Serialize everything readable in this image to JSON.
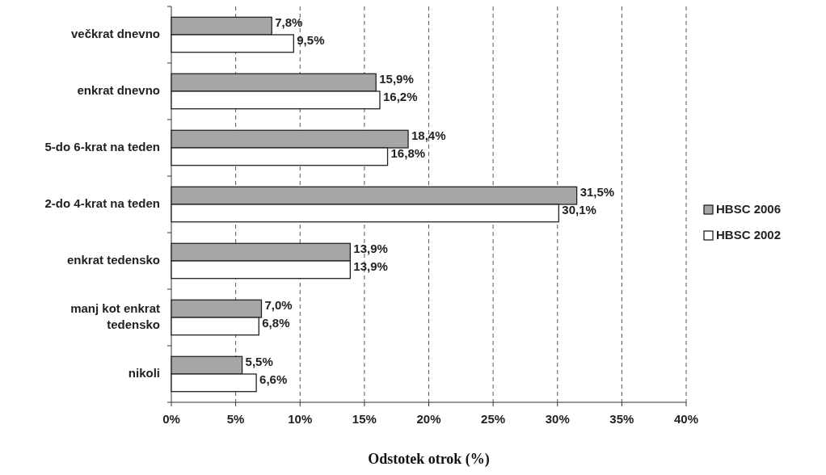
{
  "chart_data": {
    "type": "bar",
    "orientation": "horizontal",
    "xlabel": "Odstotek otrok (%)",
    "categories": [
      "večkrat dnevno",
      "enkrat dnevno",
      "5-do 6-krat na teden",
      "2-do 4-krat na teden",
      "enkrat tedensko",
      "manj kot enkrat tedensko",
      "nikoli"
    ],
    "series": [
      {
        "name": "HBSC 2006",
        "color": "#a6a6a6",
        "values": [
          7.8,
          15.9,
          18.4,
          31.5,
          13.9,
          7.0,
          5.5
        ],
        "value_labels": [
          "7,8%",
          "15,9%",
          "18,4%",
          "31,5%",
          "13,9%",
          "7,0%",
          "5,5%"
        ]
      },
      {
        "name": "HBSC 2002",
        "color": "#ffffff",
        "values": [
          9.5,
          16.2,
          16.8,
          30.1,
          13.9,
          6.8,
          6.6
        ],
        "value_labels": [
          "9,5%",
          "16,2%",
          "16,8%",
          "30,1%",
          "13,9%",
          "6,8%",
          "6,6%"
        ]
      }
    ],
    "xlim": [
      0,
      40
    ],
    "xticks": [
      {
        "value": 0,
        "label": "0%"
      },
      {
        "value": 5,
        "label": "5%"
      },
      {
        "value": 10,
        "label": "10%"
      },
      {
        "value": 15,
        "label": "15%"
      },
      {
        "value": 20,
        "label": "20%"
      },
      {
        "value": 25,
        "label": "25%"
      },
      {
        "value": 30,
        "label": "30%"
      },
      {
        "value": 35,
        "label": "35%"
      },
      {
        "value": 40,
        "label": "40%"
      }
    ],
    "grid": "x",
    "legend": "right"
  }
}
